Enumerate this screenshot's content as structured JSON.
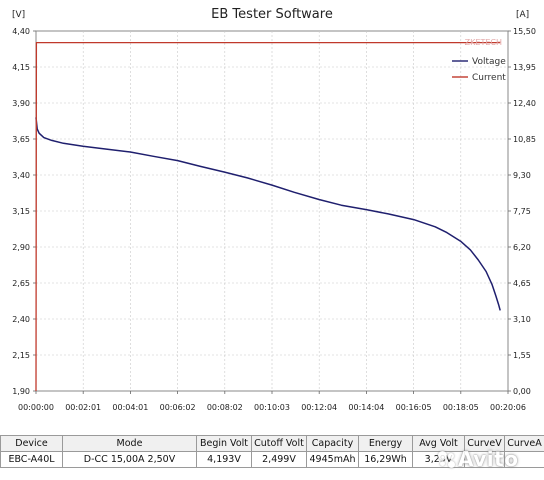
{
  "window": {
    "title": "EB Tester Software",
    "left_unit": "[V]",
    "right_unit": "[A]"
  },
  "chart_data": {
    "type": "line",
    "title": "EB Tester Software",
    "xlabel": "",
    "ylabel": "[V]",
    "y2label": "[A]",
    "x_ticks": [
      "00:00:00",
      "00:02:01",
      "00:04:01",
      "00:06:02",
      "00:08:02",
      "00:10:03",
      "00:12:04",
      "00:14:04",
      "00:16:05",
      "00:18:05",
      "00:20:06"
    ],
    "y_ticks": [
      "4,40",
      "4,15",
      "3,90",
      "3,65",
      "3,40",
      "3,15",
      "2,90",
      "2,65",
      "2,40",
      "2,15",
      "1,90"
    ],
    "y2_ticks": [
      "15,50",
      "13,95",
      "12,40",
      "10,85",
      "9,30",
      "7,75",
      "6,20",
      "4,65",
      "3,10",
      "1,55",
      "0,00"
    ],
    "xlim_seconds": [
      0,
      1206
    ],
    "ylim": [
      1.9,
      4.4
    ],
    "y2lim": [
      0.0,
      15.5
    ],
    "grid": true,
    "legend_placement": "top-right",
    "watermark": "ZKETECH",
    "series": [
      {
        "name": "Voltage",
        "axis": "left",
        "color": "#1f1f6e",
        "x_seconds": [
          0,
          3,
          8,
          20,
          40,
          70,
          120,
          180,
          241,
          300,
          362,
          420,
          482,
          540,
          603,
          660,
          723,
          780,
          844,
          900,
          965,
          1020,
          1050,
          1085,
          1110,
          1130,
          1150,
          1165,
          1175,
          1182,
          1186
        ],
        "values": [
          3.8,
          3.72,
          3.69,
          3.66,
          3.64,
          3.62,
          3.6,
          3.58,
          3.56,
          3.53,
          3.5,
          3.46,
          3.42,
          3.38,
          3.33,
          3.28,
          3.23,
          3.19,
          3.16,
          3.13,
          3.09,
          3.04,
          3.0,
          2.94,
          2.88,
          2.81,
          2.73,
          2.64,
          2.56,
          2.5,
          2.46
        ]
      },
      {
        "name": "Current",
        "axis": "right",
        "color": "#c0392b",
        "x_seconds": [
          0,
          1,
          1186
        ],
        "values": [
          0.0,
          15.0,
          15.0
        ]
      }
    ]
  },
  "table": {
    "headers": [
      "Device",
      "Mode",
      "Begin Volt",
      "Cutoff Volt",
      "Capacity",
      "Energy",
      "Avg Volt",
      "CurveV",
      "CurveA"
    ],
    "rows": [
      [
        "EBC-A40L",
        "D-CC  15,00A  2,50V",
        "4,193V",
        "2,499V",
        "4945mAh",
        "16,29Wh",
        "3,29V",
        "",
        ""
      ]
    ]
  },
  "watermark_logo": "Avito"
}
